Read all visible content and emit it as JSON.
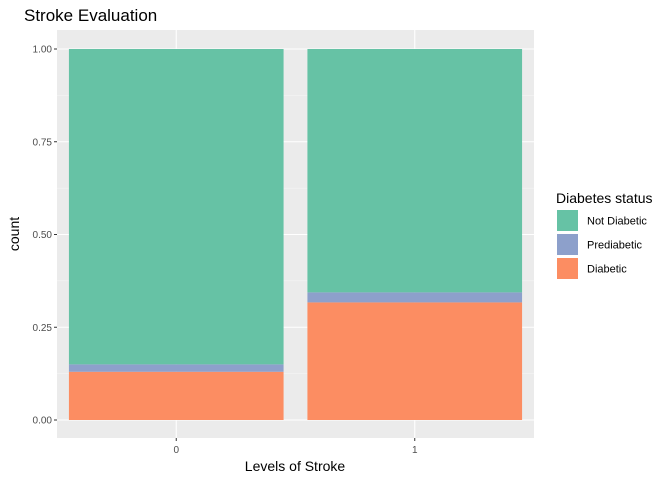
{
  "chart_data": {
    "type": "bar",
    "stacked": true,
    "title": "Stroke Evaluation",
    "xlabel": "Levels of Stroke",
    "ylabel": "count",
    "categories": [
      "0",
      "1"
    ],
    "ylim": [
      0,
      1
    ],
    "yticks": [
      "0.00",
      "0.25",
      "0.50",
      "0.75",
      "1.00"
    ],
    "ytick_values": [
      0,
      0.25,
      0.5,
      0.75,
      1.0
    ],
    "grid": true,
    "legend": {
      "title": "Diabetes status",
      "placement": "right"
    },
    "series": [
      {
        "name": "Diabetic",
        "color": "#fc8d62",
        "values": [
          0.13,
          0.317
        ]
      },
      {
        "name": "Prediabetic",
        "color": "#8da0cb",
        "values": [
          0.02,
          0.027
        ]
      },
      {
        "name": "Not Diabetic",
        "color": "#66c2a5",
        "values": [
          0.85,
          0.656
        ]
      }
    ],
    "legend_order": [
      "Not Diabetic",
      "Prediabetic",
      "Diabetic"
    ]
  }
}
